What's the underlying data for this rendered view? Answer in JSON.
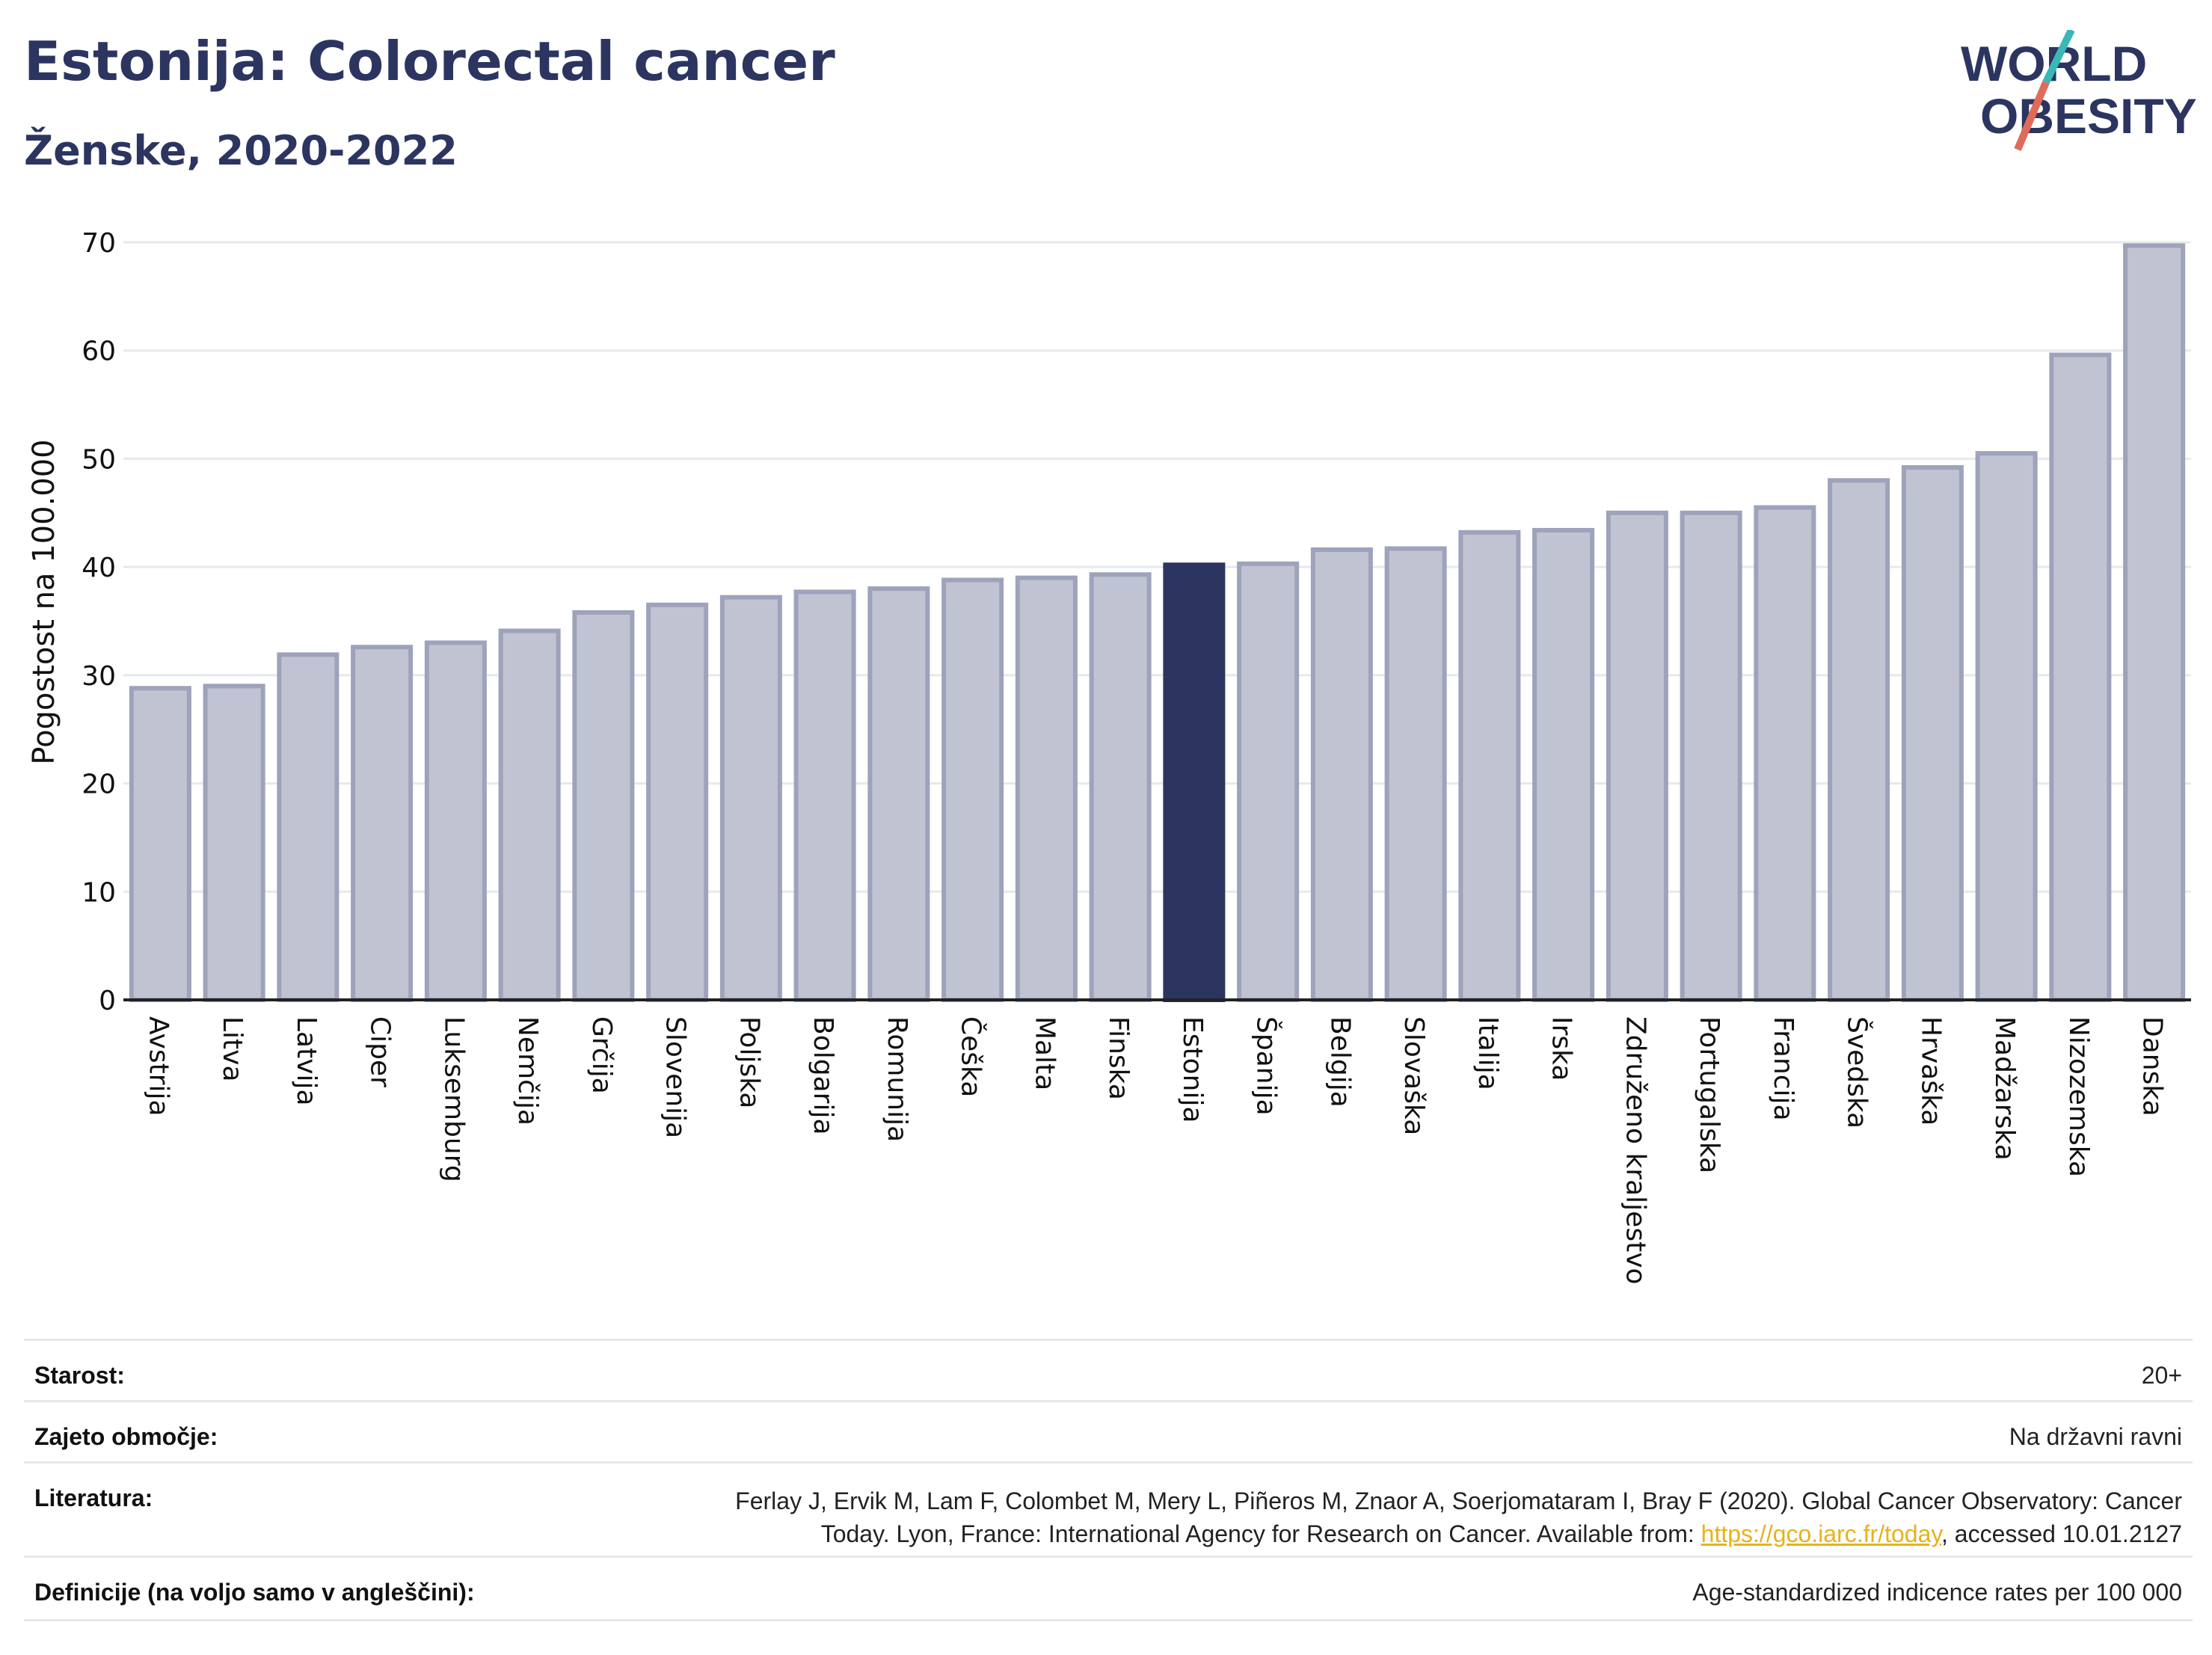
{
  "header": {
    "title": "Estonija: Colorectal cancer",
    "subtitle": "Ženske, 2020-2022"
  },
  "logo": {
    "line1": "WORLD",
    "line2": "OBESITY"
  },
  "chart_data": {
    "type": "bar",
    "ylabel": "Pogostost na 100.000",
    "ylim": [
      0,
      70
    ],
    "yticks": [
      0,
      10,
      20,
      30,
      40,
      50,
      60,
      70
    ],
    "grid": true,
    "highlight": "Estonija",
    "colors": {
      "bar": "#c0c3d1",
      "bar_edge": "#9ea3bb",
      "highlight": "#2b3560"
    },
    "categories": [
      "Avstrija",
      "Litva",
      "Latvija",
      "Ciper",
      "Luksemburg",
      "Nemčija",
      "Grčija",
      "Slovenija",
      "Poljska",
      "Bolgarija",
      "Romunija",
      "Češka",
      "Malta",
      "Finska",
      "Estonija",
      "Španija",
      "Belgija",
      "Slovaška",
      "Italija",
      "Irska",
      "Združeno kraljestvo",
      "Portugalska",
      "Francija",
      "Švedska",
      "Hrvaška",
      "Madžarska",
      "Nizozemska",
      "Danska"
    ],
    "values": [
      28.8,
      29.0,
      31.9,
      32.6,
      33.0,
      34.1,
      35.8,
      36.5,
      37.2,
      37.7,
      38.0,
      38.8,
      39.0,
      39.3,
      40.2,
      40.3,
      41.6,
      41.7,
      43.2,
      43.4,
      45.0,
      45.0,
      45.5,
      48.0,
      49.2,
      50.5,
      59.6,
      69.7
    ]
  },
  "meta": {
    "age_label": "Starost:",
    "age_value": "20+",
    "coverage_label": "Zajeto območje:",
    "coverage_value": "Na državni ravni",
    "ref_label": "Literatura:",
    "ref_line1": "Ferlay J, Ervik M, Lam F, Colombet M, Mery L, Piñeros M, Znaor A, Soerjomataram I, Bray F (2020). Global Cancer Observatory: Cancer",
    "ref_line2_pre": "Today. Lyon, France: International Agency for Research on Cancer. Available from: ",
    "ref_link": "https://gco.iarc.fr/today",
    "ref_line2_post": ", accessed 10.01.2127",
    "def_label": "Definicije (na voljo samo v angleščini):",
    "def_value": "Age-standardized indicence rates per 100 000"
  }
}
